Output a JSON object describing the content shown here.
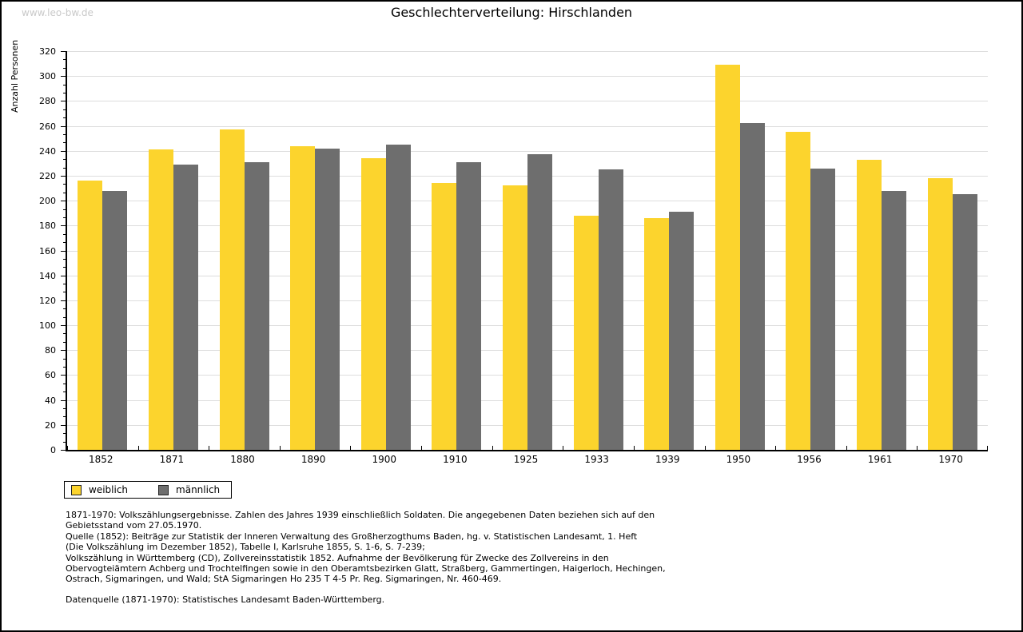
{
  "watermark": "www.leo-bw.de",
  "title": "Geschlechterverteilung: Hirschlanden",
  "chart_data": {
    "type": "bar",
    "title": "Geschlechterverteilung: Hirschlanden",
    "xlabel": "",
    "ylabel": "Anzahl Personen",
    "ylim": [
      0,
      320
    ],
    "ytick_step": 20,
    "grid": true,
    "legend_position": "bottom-left",
    "categories": [
      "1852",
      "1871",
      "1880",
      "1890",
      "1900",
      "1910",
      "1925",
      "1933",
      "1939",
      "1950",
      "1956",
      "1961",
      "1970"
    ],
    "series": [
      {
        "name": "weiblich",
        "color": "#FCD42D",
        "values": [
          216,
          241,
          257,
          244,
          234,
          214,
          212,
          188,
          186,
          309,
          255,
          233,
          218
        ]
      },
      {
        "name": "männlich",
        "color": "#6E6E6E",
        "values": [
          208,
          229,
          231,
          242,
          245,
          231,
          237,
          225,
          191,
          262,
          226,
          208,
          205
        ]
      }
    ]
  },
  "colors": {
    "weiblich": "#FCD42D",
    "maennlich": "#6E6E6E",
    "gridline": "#DDDDDD",
    "watermark": "#C9C9C9",
    "axis": "#000000"
  },
  "footnotes": {
    "lines": [
      "1871-1970: Volkszählungsergebnisse. Zahlen des Jahres 1939 einschließlich Soldaten. Die angegebenen Daten beziehen sich auf den",
      "Gebietsstand vom 27.05.1970.",
      "Quelle (1852): Beiträge zur Statistik der Inneren Verwaltung des Großherzogthums Baden, hg. v. Statistischen Landesamt, 1. Heft",
      "(Die Volkszählung im Dezember 1852), Tabelle I, Karlsruhe 1855, S. 1-6, S. 7-239;",
      "Volkszählung in Württemberg (CD), Zollvereinsstatistik 1852. Aufnahme der Bevölkerung für Zwecke des Zollvereins in den",
      "Obervogteiämtern Achberg und Trochtelfingen sowie in den Oberamtsbezirken Glatt, Straßberg, Gammertingen, Haigerloch, Hechingen,",
      "Ostrach, Sigmaringen, und Wald; StA Sigmaringen Ho 235 T 4-5 Pr. Reg. Sigmaringen, Nr. 460-469."
    ],
    "datasource": "Datenquelle (1871-1970): Statistisches Landesamt Baden-Württemberg."
  }
}
